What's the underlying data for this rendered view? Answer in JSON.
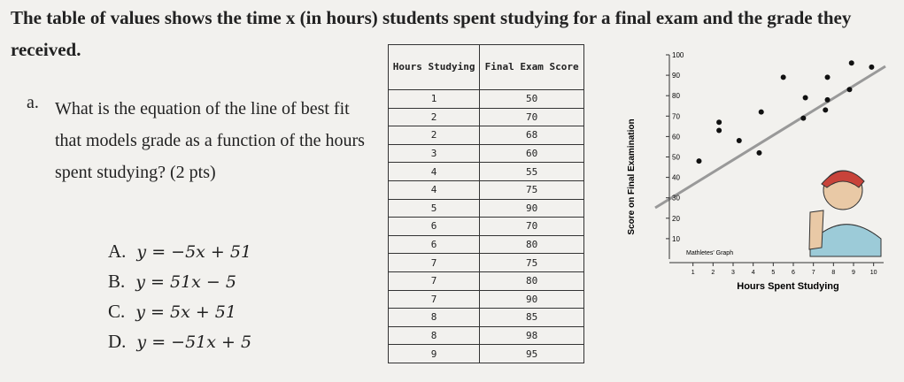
{
  "question": {
    "intro": "The table of values shows the time x (in hours) students spent studying for a final exam and the grade they received.",
    "part": "a.",
    "prompt": "What is the equation of the line of best fit that models grade as a function of the hours spent studying? (2 pts)",
    "options": [
      {
        "letter": "A.",
        "text": "y = −5x + 51"
      },
      {
        "letter": "B.",
        "text": "y = 51x − 5"
      },
      {
        "letter": "C.",
        "text": "y = 5x + 51"
      },
      {
        "letter": "D.",
        "text": "y = −51x + 5"
      }
    ]
  },
  "table": {
    "headers": [
      "Hours Studying",
      "Final Exam Score"
    ],
    "rows": [
      [
        "1",
        "50"
      ],
      [
        "2",
        "70"
      ],
      [
        "2",
        "68"
      ],
      [
        "3",
        "60"
      ],
      [
        "4",
        "55"
      ],
      [
        "4",
        "75"
      ],
      [
        "5",
        "90"
      ],
      [
        "6",
        "70"
      ],
      [
        "6",
        "80"
      ],
      [
        "7",
        "75"
      ],
      [
        "7",
        "80"
      ],
      [
        "7",
        "90"
      ],
      [
        "8",
        "85"
      ],
      [
        "8",
        "98"
      ],
      [
        "9",
        "95"
      ]
    ]
  },
  "graph": {
    "y_label": "Score on Final Examination",
    "x_label": "Hours Spent Studying",
    "caption": "Mathletes' Graph",
    "xlim": [
      0,
      10.5
    ],
    "ylim": [
      0,
      100
    ],
    "xticks": [
      1,
      2,
      3,
      4,
      5,
      6,
      7,
      8,
      9,
      10
    ],
    "yticks": [
      10,
      20,
      30,
      40,
      50,
      60,
      70,
      80,
      90,
      100
    ],
    "x": [
      1.3,
      4.3,
      3.3,
      2.3,
      2.3,
      4.4,
      6.5,
      6.6,
      7.6,
      7.7,
      5.5,
      7.7,
      8.8,
      8.9,
      9.9
    ],
    "y": [
      48,
      52,
      58,
      63,
      67,
      72,
      69,
      79,
      73,
      78,
      89,
      89,
      83,
      96,
      94
    ]
  }
}
